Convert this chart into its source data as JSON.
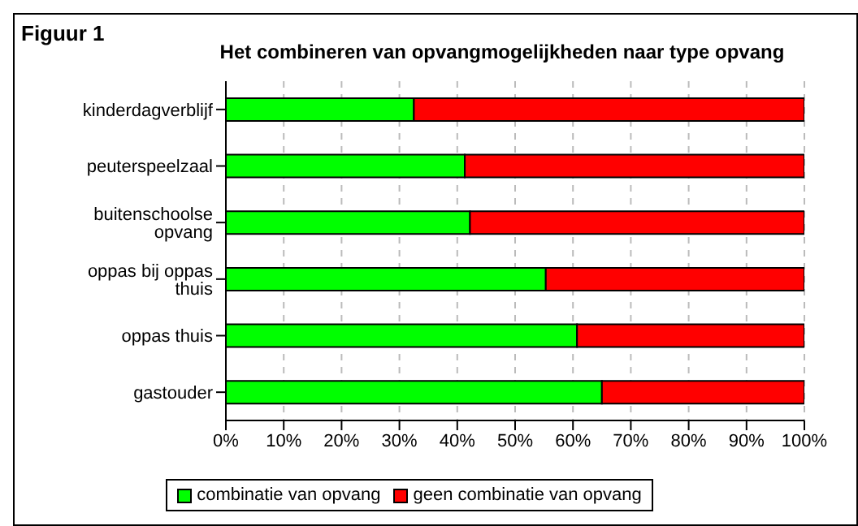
{
  "chart_data": {
    "type": "bar",
    "orientation": "horizontal",
    "stacked": true,
    "title": "Het combineren van opvangmogelijkheden naar type opvang",
    "annotations": [
      "Figuur 1"
    ],
    "categories": [
      "kinderdagverblijf",
      "peuterspeelzaal",
      "buitenschoolse opvang",
      "oppas bij oppas thuis",
      "oppas thuis",
      "gastouder"
    ],
    "series": [
      {
        "name": "combinatie van opvang",
        "color": "#00ff00",
        "values": [
          32.5,
          41.3,
          42.2,
          55.3,
          60.7,
          65.0
        ]
      },
      {
        "name": "geen combinatie van opvang",
        "color": "#ff0000",
        "values": [
          67.5,
          58.7,
          57.8,
          44.7,
          39.3,
          35.0
        ]
      }
    ],
    "xlim": [
      0,
      100
    ],
    "xticks": [
      {
        "value": 0,
        "label": "0%"
      },
      {
        "value": 10,
        "label": "10%"
      },
      {
        "value": 20,
        "label": "20%"
      },
      {
        "value": 30,
        "label": "30%"
      },
      {
        "value": 40,
        "label": "40%"
      },
      {
        "value": 50,
        "label": "50%"
      },
      {
        "value": 60,
        "label": "60%"
      },
      {
        "value": 70,
        "label": "70%"
      },
      {
        "value": 80,
        "label": "80%"
      },
      {
        "value": 90,
        "label": "90%"
      },
      {
        "value": 100,
        "label": "100%"
      }
    ],
    "grid": "x",
    "legend": "bottom"
  }
}
